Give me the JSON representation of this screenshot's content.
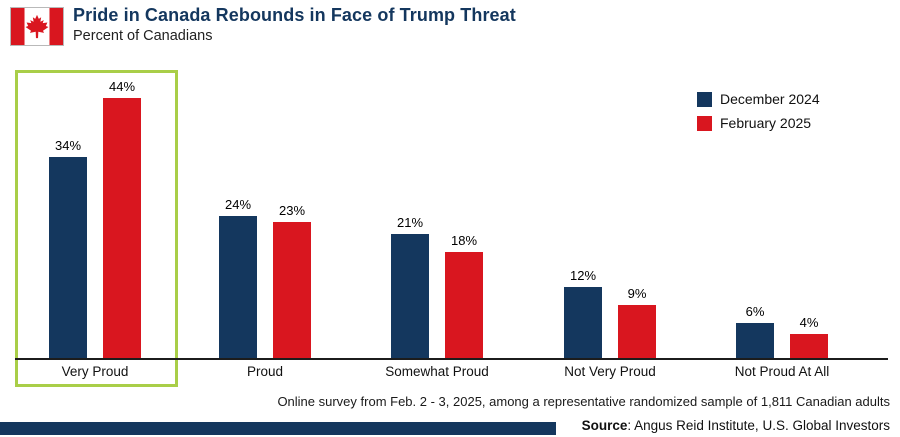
{
  "header": {
    "title": "Pride in Canada Rebounds in Face of Trump Threat",
    "subtitle": "Percent of Canadians"
  },
  "chart_data": {
    "type": "bar",
    "title": "Pride in Canada Rebounds in Face of Trump Threat",
    "ylabel": "Percent of Canadians",
    "categories": [
      "Very Proud",
      "Proud",
      "Somewhat Proud",
      "Not Very Proud",
      "Not Proud At All"
    ],
    "series": [
      {
        "name": "December 2024",
        "color": "#14375e",
        "values": [
          34,
          24,
          21,
          12,
          6
        ]
      },
      {
        "name": "February 2025",
        "color": "#d9161f",
        "values": [
          44,
          23,
          18,
          9,
          4
        ]
      }
    ],
    "value_suffix": "%",
    "ylim": [
      0,
      50
    ],
    "grid": false,
    "legend_position": "top-right",
    "highlighted_category": "Very Proud",
    "highlight_color": "#a9ce48"
  },
  "footer": {
    "note": "Online survey from Feb. 2 - 3, 2025, among a representative randomized sample of 1,811 Canadian adults",
    "source_label": "Source",
    "source_text": ": Angus Reid Institute, U.S. Global Investors"
  },
  "colors": {
    "navy": "#14375e",
    "red": "#d9161f",
    "highlight_green": "#a9ce48",
    "flag_red": "#d9161f"
  }
}
